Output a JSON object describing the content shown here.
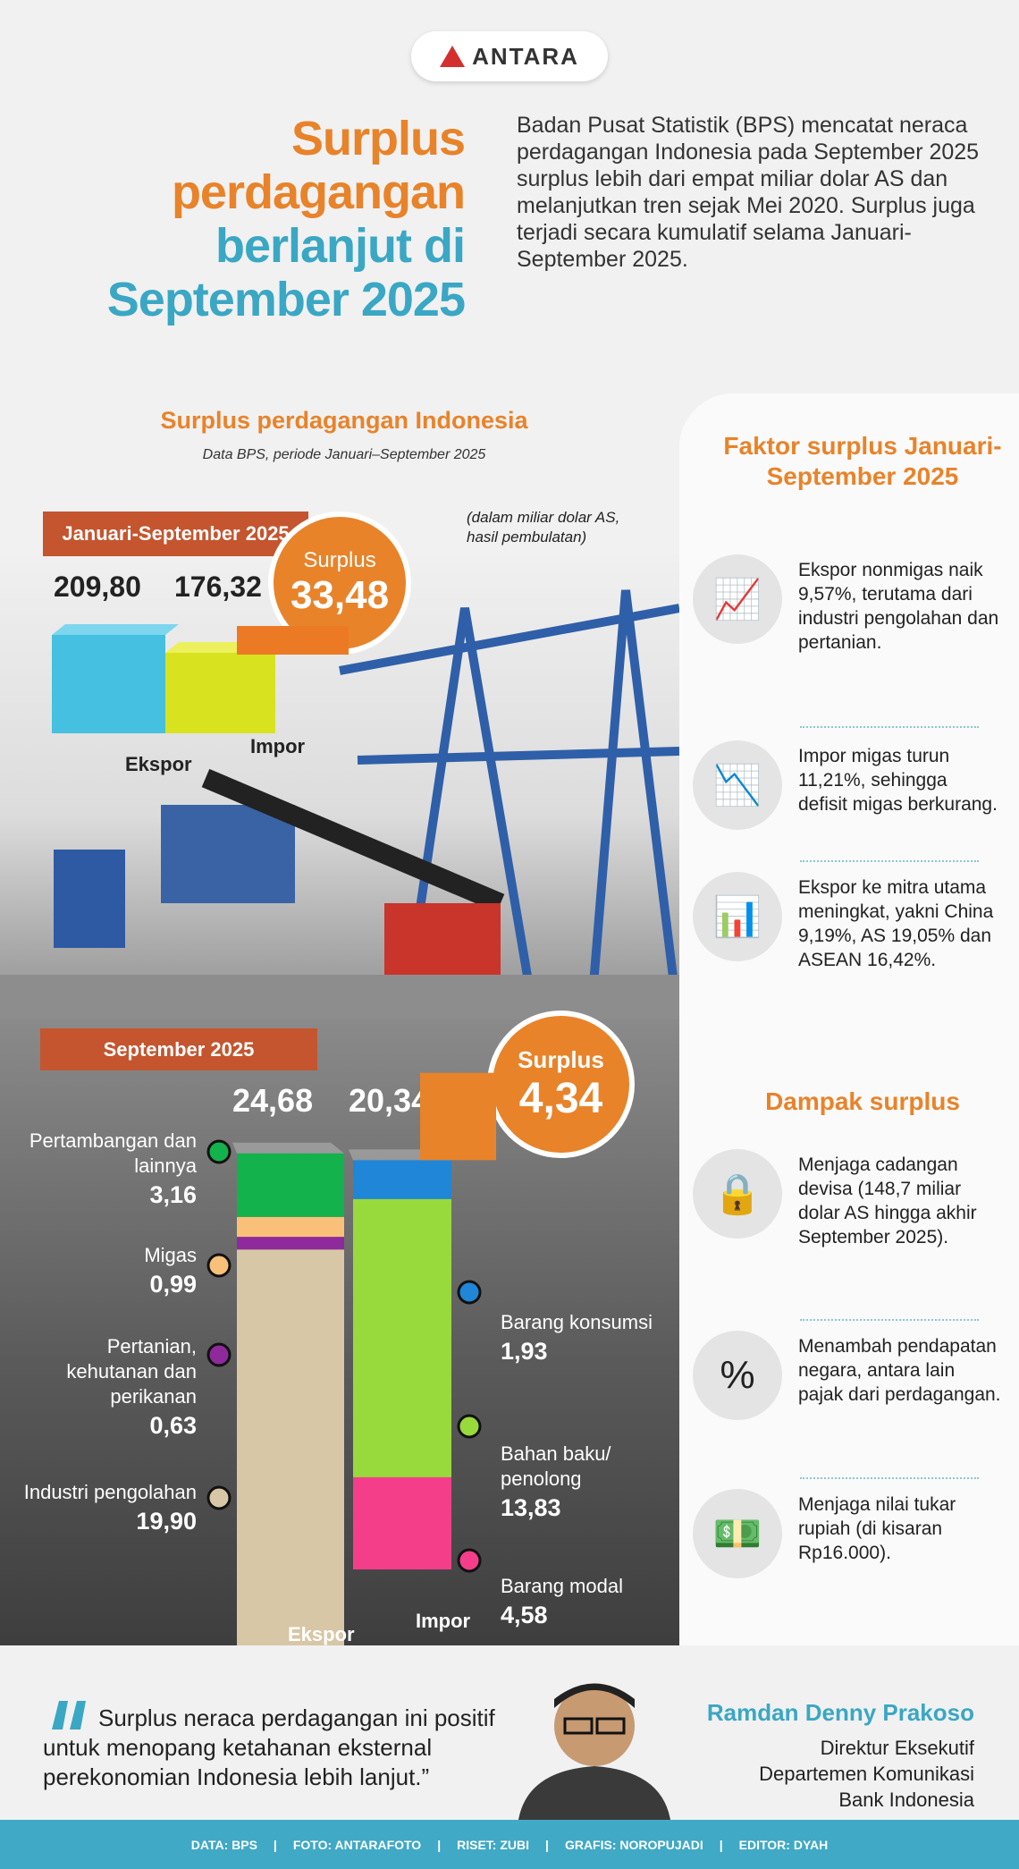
{
  "logo": "ANTARA",
  "title": {
    "line1": "Surplus",
    "line2": "perdagangan",
    "line3": "berlanjut di",
    "line4": "September 2025"
  },
  "intro": "Badan Pusat Statistik (BPS) mencatat neraca perdagangan Indonesia pada September 2025 surplus lebih dari empat miliar dolar AS dan melanjutkan tren sejak Mei 2020. Surplus juga terjadi secara kumulatif selama Januari-September 2025.",
  "section": {
    "heading": "Surplus perdagangan Indonesia",
    "subheading": "Data BPS, periode Januari–September 2025",
    "unit_note": "(dalam miliar dolar AS, hasil pembulatan)"
  },
  "chart_data": [
    {
      "type": "bar",
      "title": "Januari-September 2025",
      "categories": [
        "Ekspor",
        "Impor"
      ],
      "values": [
        209.8,
        176.32
      ],
      "value_labels": [
        "209,80",
        "176,32"
      ],
      "surplus_label": "Surplus",
      "surplus": "33,48",
      "colors": {
        "ekspor": "#45c0e0",
        "impor": "#d8e21f",
        "surplus": "#e8832a"
      }
    },
    {
      "type": "bar",
      "stacked": true,
      "title": "September 2025",
      "categories": [
        "Ekspor",
        "Impor"
      ],
      "totals": [
        "24,68",
        "20,34"
      ],
      "surplus_label": "Surplus",
      "surplus": "4,34",
      "series": [
        {
          "bar": "Ekspor",
          "name": "Industri pengolahan",
          "value": 19.9,
          "label": "19,90",
          "color": "#d7c7a6"
        },
        {
          "bar": "Ekspor",
          "name": "Pertanian, kehutanan dan perikanan",
          "value": 0.63,
          "label": "0,63",
          "color": "#8e2a9c"
        },
        {
          "bar": "Ekspor",
          "name": "Migas",
          "value": 0.99,
          "label": "0,99",
          "color": "#f8c079"
        },
        {
          "bar": "Ekspor",
          "name": "Pertambangan dan lainnya",
          "value": 3.16,
          "label": "3,16",
          "color": "#13b24d"
        },
        {
          "bar": "Impor",
          "name": "Barang modal",
          "value": 4.58,
          "label": "4,58",
          "color": "#f53e8a"
        },
        {
          "bar": "Impor",
          "name": "Bahan baku/ penolong",
          "value": 13.83,
          "label": "13,83",
          "color": "#98d93c"
        },
        {
          "bar": "Impor",
          "name": "Barang konsumsi",
          "value": 1.93,
          "label": "1,93",
          "color": "#1f86d8"
        }
      ]
    }
  ],
  "factors": {
    "heading": "Faktor surplus Januari-September 2025",
    "items": [
      {
        "icon": "rising-chart-icon",
        "text": "Ekspor nonmigas naik 9,57%, terutama dari industri pengolahan dan pertanian."
      },
      {
        "icon": "falling-chart-icon",
        "text": "Impor migas turun 11,21%, sehingga defisit migas berkurang."
      },
      {
        "icon": "bar-chart-icon",
        "text": "Ekspor ke mitra utama meningkat, yakni China 9,19%, AS 19,05% dan ASEAN 16,42%."
      }
    ]
  },
  "impact": {
    "heading": "Dampak surplus",
    "items": [
      {
        "icon": "lock-coin-icon",
        "text": "Menjaga cadangan devisa (148,7 miliar dolar AS hingga akhir September 2025)."
      },
      {
        "icon": "percent-arrow-icon",
        "text": "Menambah pendapatan negara, antara lain pajak dari perdagangan."
      },
      {
        "icon": "money-arrow-icon",
        "text": "Menjaga nilai tukar rupiah (di kisaran Rp16.000)."
      }
    ]
  },
  "quote": {
    "text": "Surplus neraca perdagangan ini positif untuk menopang ketahanan eksternal perekonomian Indonesia lebih lanjut.”",
    "name": "Ramdan Denny Prakoso",
    "role1": "Direktur Eksekutif",
    "role2": "Departemen Komunikasi",
    "role3": "Bank Indonesia"
  },
  "footer": [
    "DATA: BPS",
    "FOTO: ANTARAFOTO",
    "RISET: ZUBI",
    "GRAFIS: NOROPUJADI",
    "EDITOR: DYAH"
  ]
}
